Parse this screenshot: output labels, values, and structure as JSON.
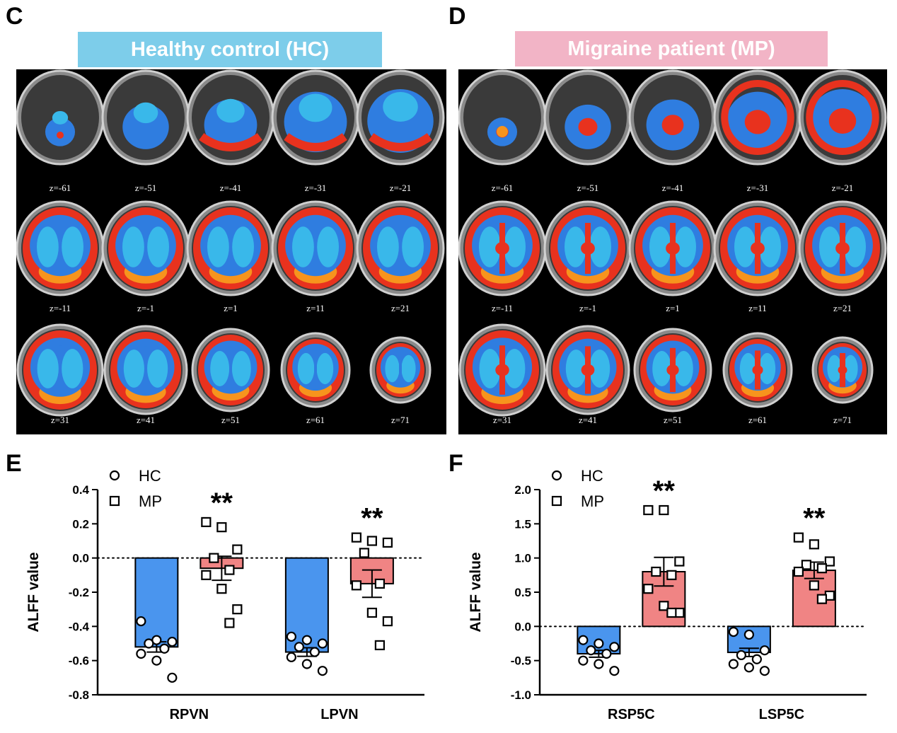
{
  "panels": {
    "c": {
      "letter": "C",
      "banner": "Healthy control (HC)",
      "banner_color": "#7dcdea",
      "rows": [
        [
          "z=-61",
          "z=-51",
          "z=-41",
          "z=-31",
          "z=-21"
        ],
        [
          "z=-11",
          "z=-1",
          "z=1",
          "z=11",
          "z=21"
        ],
        [
          "z=31",
          "z=41",
          "z=51",
          "z=61",
          "z=71"
        ]
      ]
    },
    "d": {
      "letter": "D",
      "banner": "Migraine patient (MP)",
      "banner_color": "#f2b4c6",
      "rows": [
        [
          "z=-61",
          "z=-51",
          "z=-41",
          "z=-31",
          "z=-21"
        ],
        [
          "z=-11",
          "z=-1",
          "z=1",
          "z=11",
          "z=21"
        ],
        [
          "z=31",
          "z=41",
          "z=51",
          "z=61",
          "z=71"
        ]
      ]
    },
    "e": {
      "letter": "E"
    },
    "f": {
      "letter": "F"
    }
  },
  "colors": {
    "hc_bar": "#4a95ee",
    "mp_bar": "#f08484",
    "brain_blue": "#2f7de0",
    "brain_cyan": "#39b8ea",
    "brain_red": "#e8321e",
    "brain_orange": "#f7941d"
  },
  "chart_data": [
    {
      "type": "bar",
      "panel": "E",
      "categories": [
        "RPVN",
        "LPVN"
      ],
      "ylabel": "ALFF value",
      "ylim": [
        -0.8,
        0.4
      ],
      "yticks": [
        -0.8,
        -0.6,
        -0.4,
        -0.2,
        0.0,
        0.2,
        0.4
      ],
      "ytick_labels": [
        "-0.8",
        "-0.6",
        "-0.4",
        "-0.2",
        "0.0",
        "0.2",
        "0.4"
      ],
      "legend": {
        "position": "top-left",
        "entries": [
          "HC",
          "MP"
        ]
      },
      "series": [
        {
          "name": "HC",
          "marker": "circle",
          "values": [
            -0.52,
            -0.55
          ],
          "sem": [
            0.03,
            0.025
          ],
          "points": [
            [
              -0.37,
              -0.48,
              -0.49,
              -0.5,
              -0.53,
              -0.56,
              -0.6,
              -0.7
            ],
            [
              -0.46,
              -0.48,
              -0.5,
              -0.52,
              -0.55,
              -0.58,
              -0.62,
              -0.66
            ]
          ]
        },
        {
          "name": "MP",
          "marker": "square",
          "values": [
            -0.06,
            -0.15
          ],
          "sem": [
            0.07,
            0.08
          ],
          "points": [
            [
              0.21,
              0.18,
              0.05,
              0.0,
              -0.07,
              -0.1,
              -0.18,
              -0.3,
              -0.38
            ],
            [
              0.12,
              0.1,
              0.09,
              0.03,
              -0.15,
              -0.16,
              -0.32,
              -0.37,
              -0.51
            ]
          ]
        }
      ],
      "annotations": [
        {
          "category": "RPVN",
          "text": "**"
        },
        {
          "category": "LPVN",
          "text": "**"
        }
      ],
      "reference_line": 0
    },
    {
      "type": "bar",
      "panel": "F",
      "categories": [
        "RSP5C",
        "LSP5C"
      ],
      "ylabel": "ALFF value",
      "ylim": [
        -1.0,
        2.0
      ],
      "yticks": [
        -1.0,
        -0.5,
        0.0,
        0.5,
        1.0,
        1.5,
        2.0
      ],
      "ytick_labels": [
        "-1.0",
        "-0.5",
        "0.0",
        "0.5",
        "1.0",
        "1.5",
        "2.0"
      ],
      "legend": {
        "position": "top-left",
        "entries": [
          "HC",
          "MP"
        ]
      },
      "series": [
        {
          "name": "HC",
          "marker": "circle",
          "values": [
            -0.4,
            -0.38
          ],
          "sem": [
            0.05,
            0.06
          ],
          "points": [
            [
              -0.2,
              -0.25,
              -0.3,
              -0.35,
              -0.4,
              -0.5,
              -0.55,
              -0.65
            ],
            [
              -0.08,
              -0.12,
              -0.35,
              -0.42,
              -0.48,
              -0.55,
              -0.6,
              -0.65
            ]
          ]
        },
        {
          "name": "MP",
          "marker": "square",
          "values": [
            0.8,
            0.82
          ],
          "sem": [
            0.21,
            0.12
          ],
          "points": [
            [
              1.7,
              1.7,
              0.95,
              0.8,
              0.75,
              0.55,
              0.3,
              0.2,
              0.2
            ],
            [
              1.3,
              1.2,
              0.95,
              0.9,
              0.85,
              0.8,
              0.6,
              0.45,
              0.4
            ]
          ]
        }
      ],
      "annotations": [
        {
          "category": "RSP5C",
          "text": "**"
        },
        {
          "category": "LSP5C",
          "text": "**"
        }
      ],
      "reference_line": 0
    }
  ]
}
